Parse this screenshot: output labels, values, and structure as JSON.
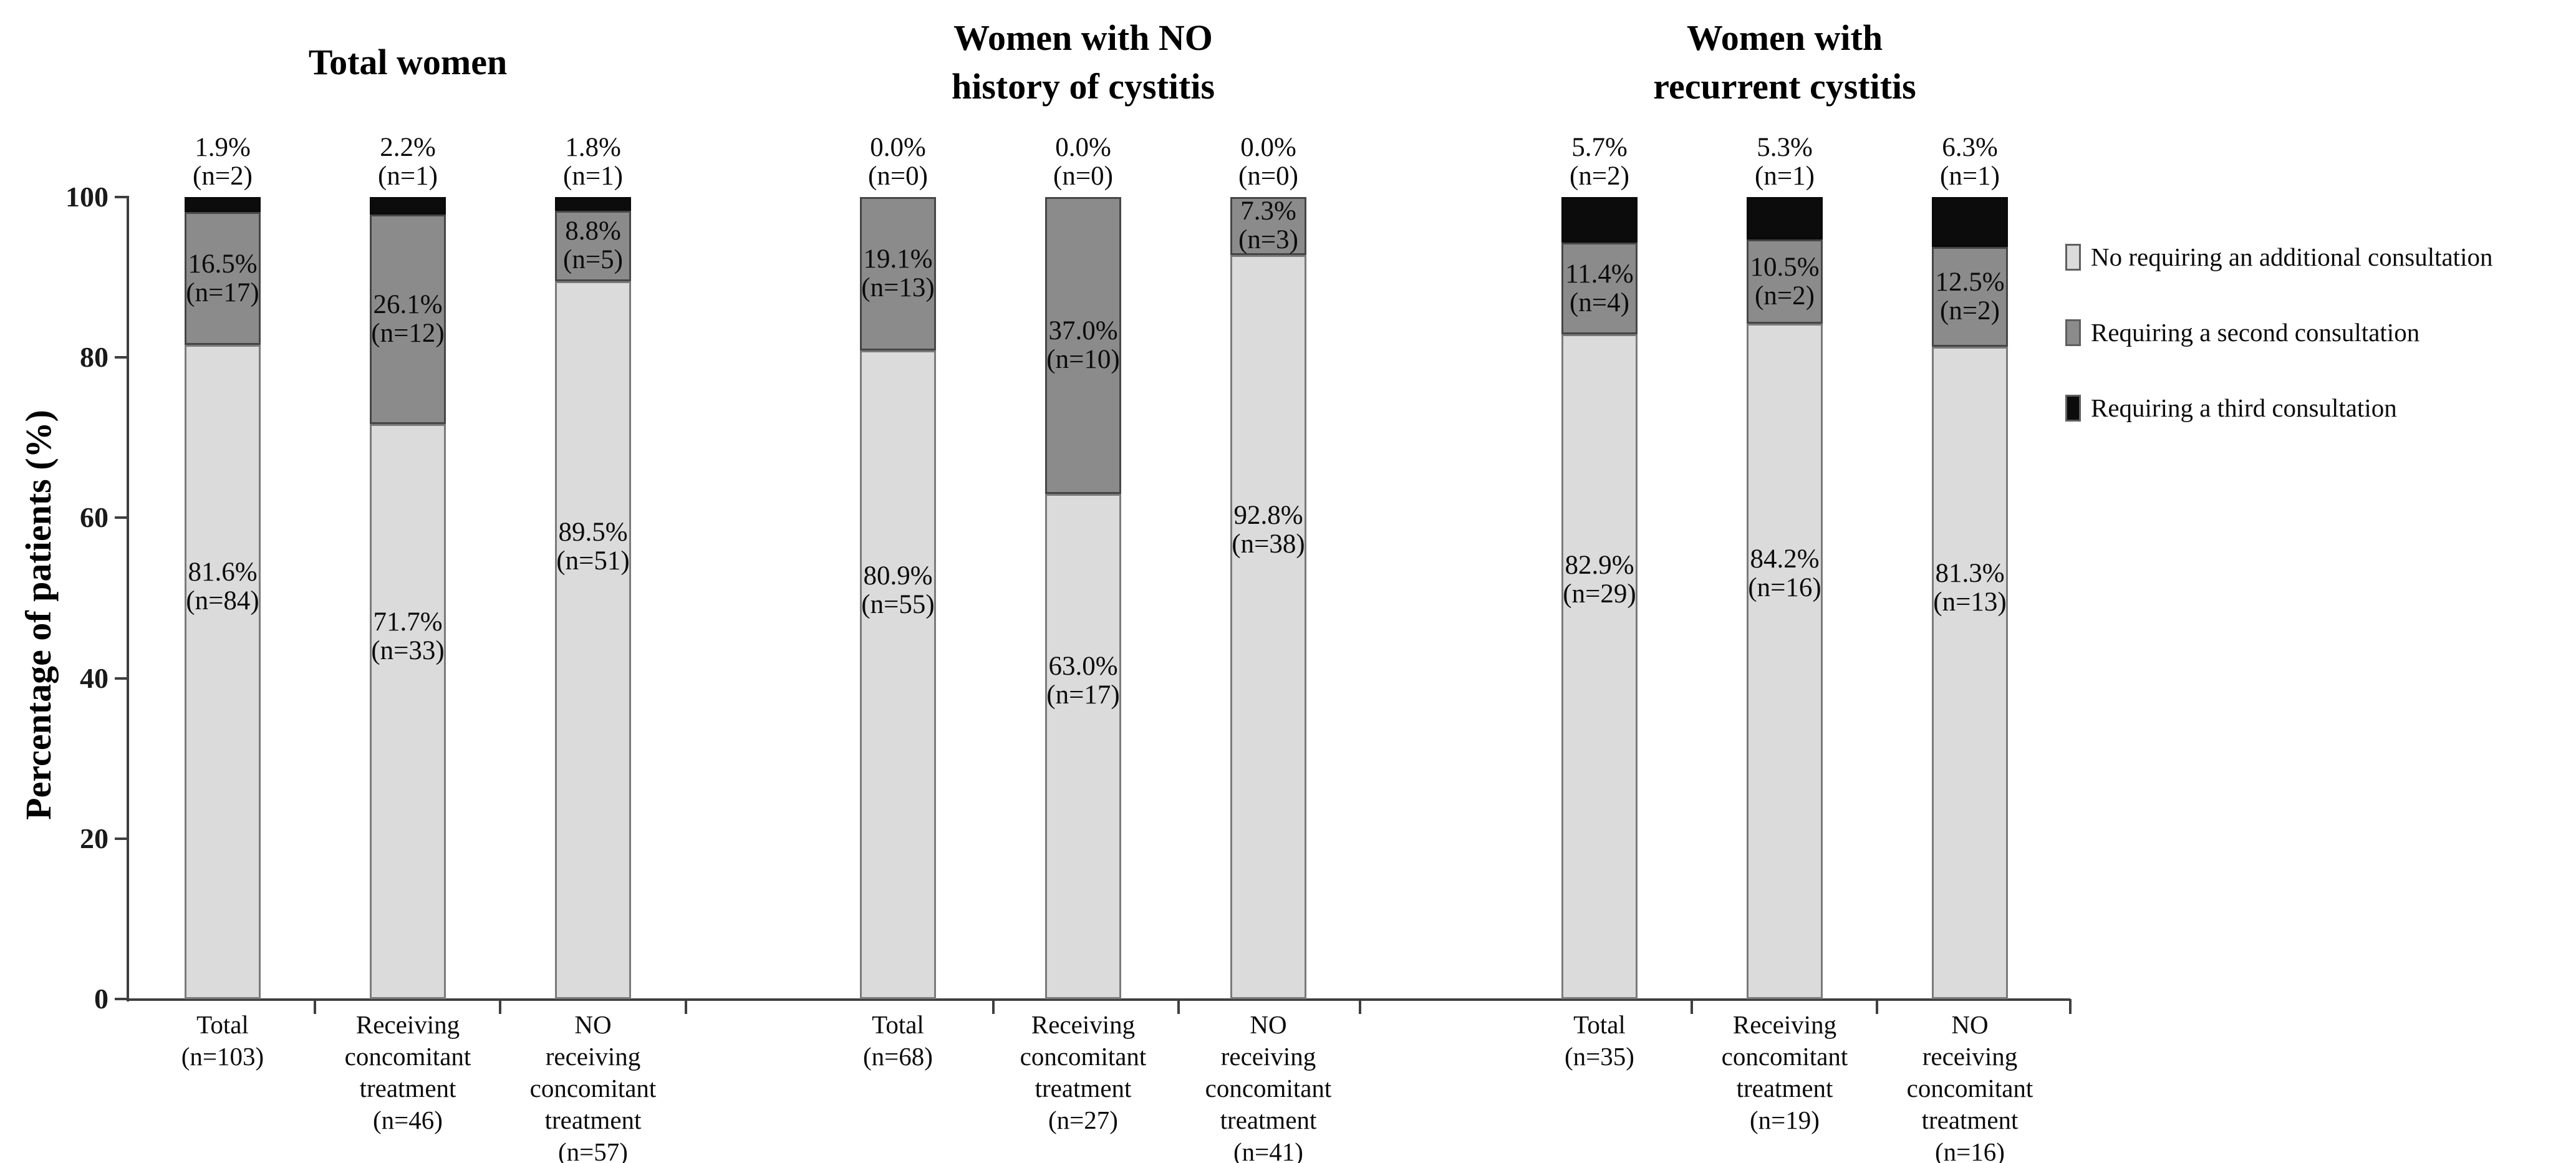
{
  "chart_data": {
    "type": "bar",
    "stacked": true,
    "ylabel": "Percentage of patients (%)",
    "ylim": [
      0,
      100
    ],
    "yticks": [
      0,
      20,
      40,
      60,
      80,
      100
    ],
    "grid": false,
    "legend_position": "right",
    "legend": [
      {
        "label": "No requiring an additional consultation",
        "color": "#DBDBDB"
      },
      {
        "label": "Requiring a second consultation",
        "color": "#8B8B8B"
      },
      {
        "label": "Requiring a third consultation",
        "color": "#0C0C0C"
      }
    ],
    "groups": [
      {
        "title_lines": [
          "Total women"
        ]
      },
      {
        "title_lines": [
          "Women with NO",
          "history of cystitis"
        ]
      },
      {
        "title_lines": [
          "Women with",
          "recurrent cystitis"
        ]
      }
    ],
    "categories": [
      [
        "Total",
        "(n=103)"
      ],
      [
        "Receiving",
        "concomitant",
        "treatment",
        "(n=46)"
      ],
      [
        "NO",
        "receiving",
        "concomitant",
        "treatment",
        "(n=57)"
      ],
      [
        "Total",
        "(n=68)"
      ],
      [
        "Receiving",
        "concomitant",
        "treatment",
        "(n=27)"
      ],
      [
        "NO",
        "receiving",
        "concomitant",
        "treatment",
        "(n=41)"
      ],
      [
        "Total",
        "(n=35)"
      ],
      [
        "Receiving",
        "concomitant",
        "treatment",
        "(n=19)"
      ],
      [
        "NO",
        "receiving",
        "concomitant",
        "treatment",
        "(n=16)"
      ]
    ],
    "series": [
      {
        "name": "No requiring an additional consultation",
        "color": "#DBDBDB",
        "values": [
          81.6,
          71.7,
          89.5,
          80.9,
          63.0,
          92.8,
          82.9,
          84.2,
          81.3
        ],
        "counts": [
          84,
          33,
          51,
          55,
          17,
          38,
          29,
          16,
          13
        ]
      },
      {
        "name": "Requiring a second consultation",
        "color": "#8B8B8B",
        "values": [
          16.5,
          26.1,
          8.8,
          19.1,
          37.0,
          7.3,
          11.4,
          10.5,
          12.5
        ],
        "counts": [
          17,
          12,
          5,
          13,
          10,
          3,
          4,
          2,
          2
        ]
      },
      {
        "name": "Requiring a third consultation",
        "color": "#0C0C0C",
        "values": [
          1.9,
          2.2,
          1.8,
          0.0,
          0.0,
          0.0,
          5.7,
          5.3,
          6.3
        ],
        "counts": [
          2,
          1,
          1,
          0,
          0,
          0,
          2,
          1,
          1
        ]
      }
    ]
  }
}
